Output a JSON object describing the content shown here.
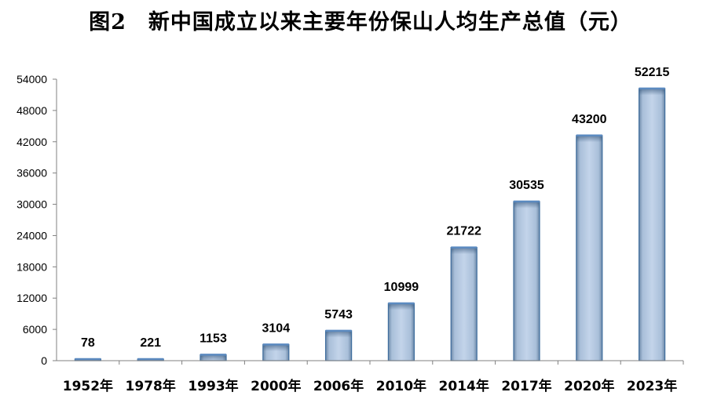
{
  "chart_data": {
    "type": "bar",
    "title": "图2　新中国成立以来主要年份保山人均生产总值（元）",
    "categories": [
      "1952年",
      "1978年",
      "1993年",
      "2000年",
      "2006年",
      "2010年",
      "2014年",
      "2017年",
      "2020年",
      "2023年"
    ],
    "values": [
      78,
      221,
      1153,
      3104,
      5743,
      10999,
      21722,
      30535,
      43200,
      52215
    ],
    "ylim": [
      0,
      54000
    ],
    "yticks": [
      0,
      6000,
      12000,
      18000,
      24000,
      30000,
      36000,
      42000,
      48000,
      54000
    ],
    "data_labels": true,
    "grid": false,
    "legend": "none",
    "colors": {
      "bar_fill": "#b8cce4",
      "bar_edge": "#3f6e9e",
      "bar_top": "#5b8ac0",
      "axis": "#808080"
    }
  }
}
